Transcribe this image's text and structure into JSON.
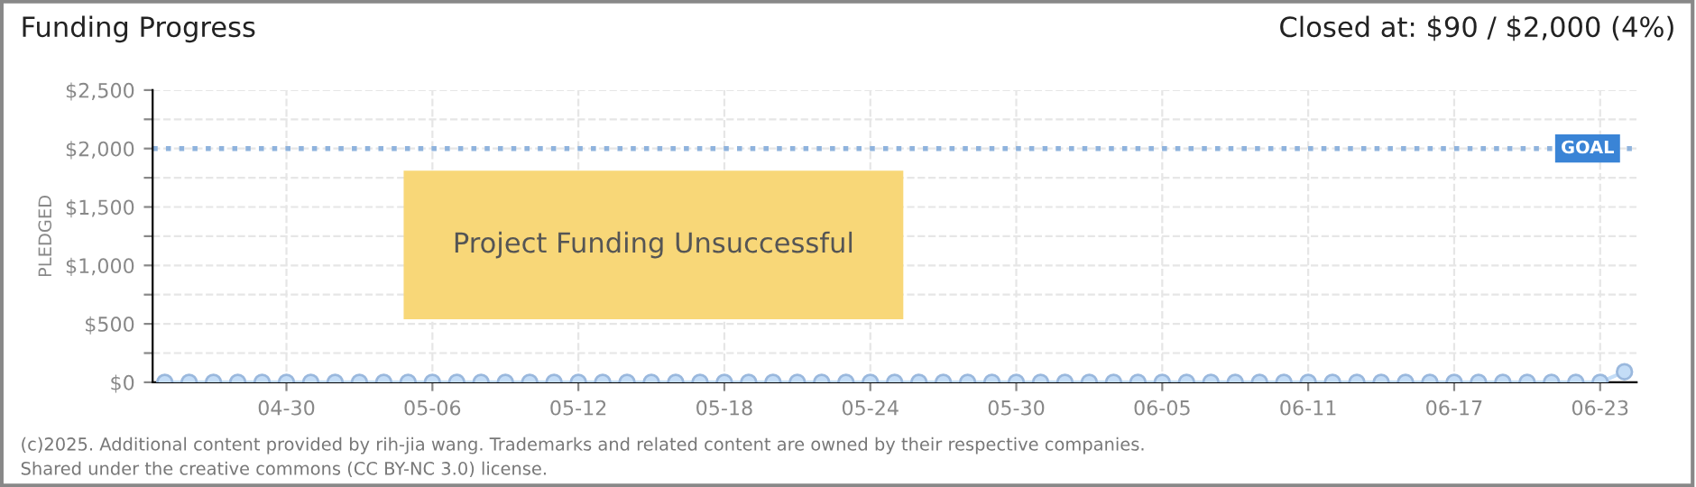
{
  "chart_data": {
    "type": "line",
    "title": "Funding Progress",
    "subtitle": "Closed at: $90 / $2,000 (4%)",
    "ylabel": "PLEDGED",
    "x": [
      "2025-04-25",
      "2025-04-26",
      "2025-04-27",
      "2025-04-28",
      "2025-04-29",
      "2025-04-30",
      "2025-05-01",
      "2025-05-02",
      "2025-05-03",
      "2025-05-04",
      "2025-05-05",
      "2025-05-06",
      "2025-05-07",
      "2025-05-08",
      "2025-05-09",
      "2025-05-10",
      "2025-05-11",
      "2025-05-12",
      "2025-05-13",
      "2025-05-14",
      "2025-05-15",
      "2025-05-16",
      "2025-05-17",
      "2025-05-18",
      "2025-05-19",
      "2025-05-20",
      "2025-05-21",
      "2025-05-22",
      "2025-05-23",
      "2025-05-24",
      "2025-05-25",
      "2025-05-26",
      "2025-05-27",
      "2025-05-28",
      "2025-05-29",
      "2025-05-30",
      "2025-05-31",
      "2025-06-01",
      "2025-06-02",
      "2025-06-03",
      "2025-06-04",
      "2025-06-05",
      "2025-06-06",
      "2025-06-07",
      "2025-06-08",
      "2025-06-09",
      "2025-06-10",
      "2025-06-11",
      "2025-06-12",
      "2025-06-13",
      "2025-06-14",
      "2025-06-15",
      "2025-06-16",
      "2025-06-17",
      "2025-06-18",
      "2025-06-19",
      "2025-06-20",
      "2025-06-21",
      "2025-06-22",
      "2025-06-23",
      "2025-06-24"
    ],
    "series": [
      {
        "color": "#c4ddf7",
        "values": [
          0,
          0,
          0,
          0,
          0,
          0,
          0,
          0,
          0,
          0,
          0,
          0,
          0,
          0,
          0,
          0,
          0,
          0,
          0,
          0,
          0,
          0,
          0,
          0,
          0,
          0,
          0,
          0,
          0,
          0,
          0,
          0,
          0,
          0,
          0,
          0,
          0,
          0,
          0,
          0,
          0,
          0,
          0,
          0,
          0,
          0,
          0,
          0,
          0,
          0,
          0,
          0,
          0,
          0,
          0,
          0,
          0,
          0,
          0,
          0,
          90
        ]
      }
    ],
    "marker": "circle",
    "line_style": "solid",
    "grid": true,
    "legend": false,
    "xlim": [
      "2025-04-24T12:00",
      "2025-06-24T12:00"
    ],
    "xticks": [
      {
        "value": "2025-04-30",
        "label": "04-30"
      },
      {
        "value": "2025-05-06",
        "label": "05-06"
      },
      {
        "value": "2025-05-12",
        "label": "05-12"
      },
      {
        "value": "2025-05-18",
        "label": "05-18"
      },
      {
        "value": "2025-05-24",
        "label": "05-24"
      },
      {
        "value": "2025-05-30",
        "label": "05-30"
      },
      {
        "value": "2025-06-05",
        "label": "06-05"
      },
      {
        "value": "2025-06-11",
        "label": "06-11"
      },
      {
        "value": "2025-06-17",
        "label": "06-17"
      },
      {
        "value": "2025-06-23",
        "label": "06-23"
      }
    ],
    "ylim": [
      0,
      2500
    ],
    "yticks": [
      {
        "value": 0,
        "label": "$0"
      },
      {
        "value": 250,
        "label": null
      },
      {
        "value": 500,
        "label": "$500"
      },
      {
        "value": 750,
        "label": null
      },
      {
        "value": 1000,
        "label": "$1,000"
      },
      {
        "value": 1250,
        "label": null
      },
      {
        "value": 1500,
        "label": "$1,500"
      },
      {
        "value": 1750,
        "label": null
      },
      {
        "value": 2000,
        "label": "$2,000"
      },
      {
        "value": 2250,
        "label": null
      },
      {
        "value": 2500,
        "label": "$2,500"
      }
    ],
    "ref_lines": [
      {
        "axis": "y",
        "value": 2000,
        "label": "GOAL",
        "color": "#8fb3dd",
        "line_style": "dotted"
      }
    ],
    "annotations": [
      "Project Funding Unsuccessful",
      "(c)2025. Additional content provided by rih-jia wang. Trademarks and related content are owned by their respective companies.",
      "Shared under the creative commons (CC BY-NC 3.0) license."
    ]
  }
}
